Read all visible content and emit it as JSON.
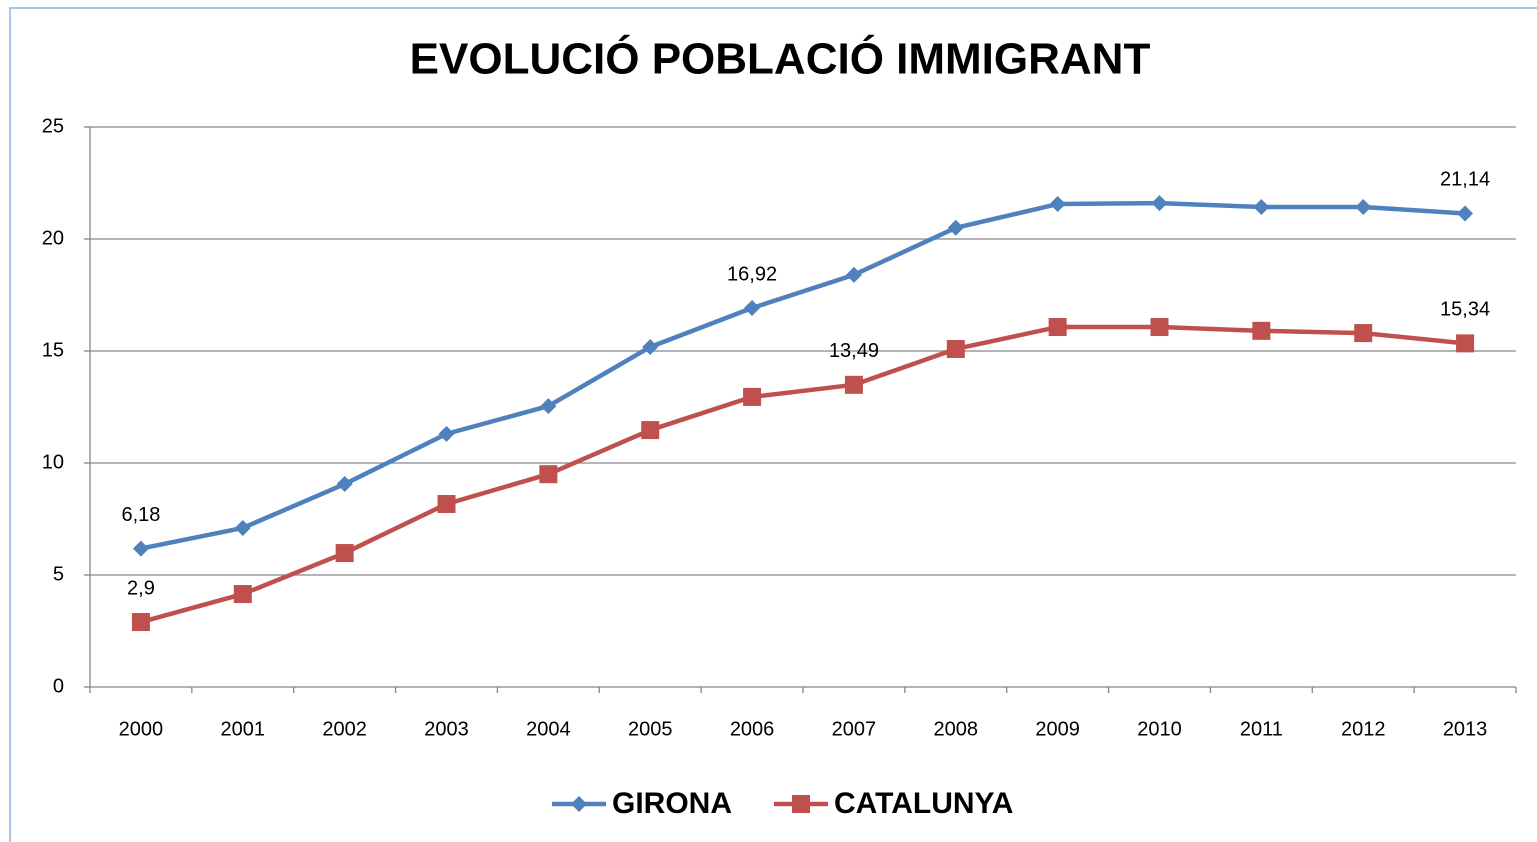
{
  "chart_data": {
    "type": "line",
    "title": "EVOLUCIÓ POBLACIÓ IMMIGRANT",
    "categories": [
      "2000",
      "2001",
      "2002",
      "2003",
      "2004",
      "2005",
      "2006",
      "2007",
      "2008",
      "2009",
      "2010",
      "2011",
      "2012",
      "2013"
    ],
    "series": [
      {
        "name": "GIRONA",
        "color": "#4f81bd",
        "marker": "diamond",
        "values": [
          6.18,
          7.1,
          9.06,
          11.3,
          12.54,
          15.18,
          16.92,
          18.4,
          20.5,
          21.56,
          21.6,
          21.43,
          21.43,
          21.14
        ],
        "value_labels": [
          "6,18",
          null,
          null,
          null,
          null,
          null,
          "16,92",
          null,
          null,
          null,
          null,
          null,
          null,
          "21,14"
        ]
      },
      {
        "name": "CATALUNYA",
        "color": "#c0504d",
        "marker": "square",
        "values": [
          2.9,
          4.15,
          5.98,
          8.17,
          9.5,
          11.47,
          12.95,
          13.49,
          15.09,
          16.07,
          16.07,
          15.9,
          15.8,
          15.34
        ],
        "value_labels": [
          "2,9",
          null,
          null,
          null,
          null,
          null,
          null,
          "13,49",
          null,
          null,
          null,
          null,
          null,
          "15,34"
        ]
      }
    ],
    "ylim": [
      0,
      25
    ],
    "yticks": [
      0,
      5,
      10,
      15,
      20,
      25
    ],
    "grid": true,
    "legend": "bottom"
  }
}
